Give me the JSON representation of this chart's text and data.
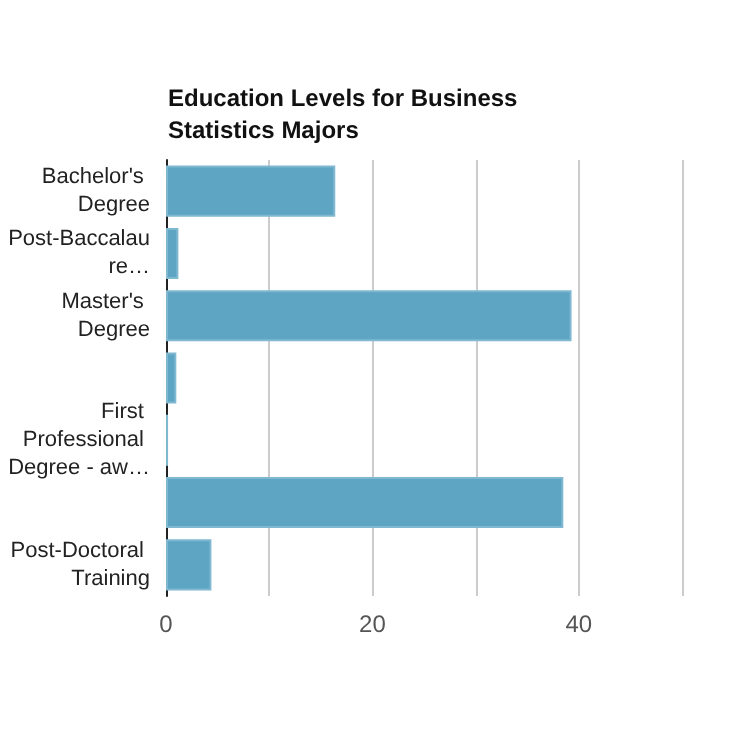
{
  "chart_data": {
    "type": "bar",
    "orientation": "horizontal",
    "title": "Education Levels for Business Statistics Majors",
    "categories": [
      "Bachelor's Degree",
      "Post-Baccalaure…",
      "Master's Degree",
      null,
      "First Professional Degree - aw…",
      null,
      "Post-Doctoral Training"
    ],
    "values": [
      16.4,
      1.2,
      39.3,
      1.0,
      0.2,
      38.5,
      4.4
    ],
    "color": "#5ea5c3",
    "xlim": [
      0,
      50
    ],
    "xticks": [
      0,
      {
        "value": 10,
        "label": null
      },
      20,
      {
        "value": 30,
        "label": null
      },
      40,
      {
        "value": 50,
        "label": null
      }
    ],
    "grid": "x"
  }
}
